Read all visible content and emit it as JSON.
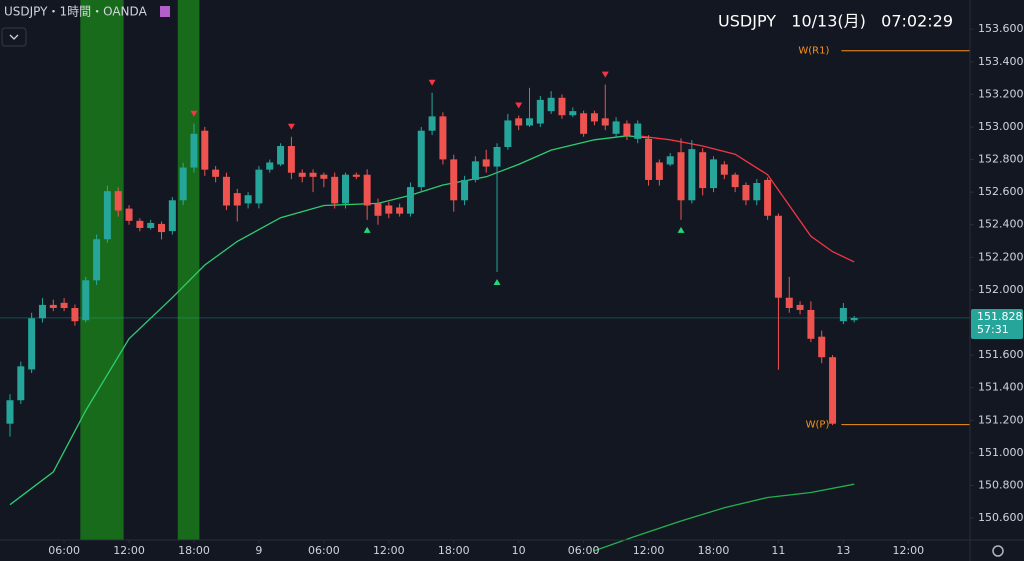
{
  "chart_data": {
    "type": "candlestick",
    "title": "USDJPY・1時間・OANDA",
    "header": "USDJPY   10/13(月)   07:02:29",
    "colors": {
      "up": "#26a69a",
      "down": "#ef5350",
      "background": "#131722",
      "highlight": "#1b7a1b"
    },
    "open": [
      151.179,
      151.323,
      151.512,
      151.826,
      151.908,
      151.921,
      151.889,
      151.814,
      152.059,
      152.311,
      152.606,
      152.499,
      152.424,
      152.38,
      152.405,
      152.361,
      152.55,
      152.751,
      152.977,
      152.738,
      152.694,
      152.594,
      152.531,
      152.531,
      152.738,
      152.77,
      152.883,
      152.719,
      152.719,
      152.707,
      152.694,
      152.531,
      152.707,
      152.707,
      152.531,
      152.518,
      152.506,
      152.468,
      152.631,
      152.977,
      153.065,
      152.801,
      152.55,
      152.675,
      152.801,
      152.757,
      152.877,
      153.053,
      153.009,
      153.021,
      153.097,
      153.179,
      153.072,
      153.084,
      153.084,
      153.053,
      152.958,
      153.021,
      152.927,
      152.927,
      152.782,
      152.77,
      152.845,
      152.55,
      152.845,
      152.625,
      152.77,
      152.707,
      152.644,
      152.55,
      152.675,
      152.455,
      151.952,
      151.908,
      151.877,
      151.713,
      151.587,
      151.808,
      151.814
    ],
    "high": [
      151.36,
      151.56,
      151.86,
      151.95,
      151.94,
      151.95,
      151.91,
      152.08,
      152.34,
      152.64,
      152.63,
      152.52,
      152.44,
      152.43,
      152.42,
      152.57,
      152.78,
      153.02,
      153.0,
      152.76,
      152.72,
      152.62,
      152.6,
      152.76,
      152.8,
      152.9,
      152.94,
      152.74,
      152.74,
      152.72,
      152.72,
      152.72,
      152.72,
      152.74,
      152.56,
      152.54,
      152.53,
      152.66,
      153.0,
      153.21,
      153.09,
      152.83,
      152.7,
      152.82,
      152.86,
      152.9,
      153.08,
      153.07,
      153.24,
      153.19,
      153.22,
      153.2,
      153.12,
      153.1,
      153.1,
      153.26,
      153.06,
      153.04,
      153.04,
      152.95,
      152.8,
      152.84,
      152.93,
      152.92,
      152.87,
      152.82,
      152.79,
      152.72,
      152.66,
      152.68,
      152.69,
      152.47,
      152.08,
      151.93,
      151.93,
      151.75,
      151.6,
      151.92,
      151.84
    ],
    "low": [
      151.1,
      151.3,
      151.49,
      151.8,
      151.87,
      151.87,
      151.78,
      151.8,
      152.03,
      152.29,
      152.45,
      152.4,
      152.36,
      152.37,
      152.31,
      152.34,
      152.52,
      152.72,
      152.7,
      152.66,
      152.49,
      152.42,
      152.5,
      152.5,
      152.72,
      152.76,
      152.68,
      152.66,
      152.6,
      152.63,
      152.5,
      152.5,
      152.68,
      152.43,
      152.4,
      152.44,
      152.45,
      152.45,
      152.6,
      152.95,
      152.77,
      152.48,
      152.52,
      152.66,
      152.72,
      152.11,
      152.86,
      152.98,
      153.0,
      153.0,
      153.08,
      153.05,
      153.06,
      152.94,
      153.01,
      152.98,
      152.94,
      152.92,
      152.9,
      152.64,
      152.64,
      152.76,
      152.43,
      152.53,
      152.58,
      152.6,
      152.68,
      152.6,
      152.52,
      152.52,
      152.43,
      151.51,
      151.86,
      151.85,
      151.68,
      151.55,
      151.17,
      151.79,
      151.8
    ],
    "close": [
      151.323,
      151.531,
      151.826,
      151.908,
      151.889,
      151.889,
      151.808,
      152.059,
      152.311,
      152.606,
      152.487,
      152.424,
      152.38,
      152.411,
      152.355,
      152.55,
      152.751,
      152.958,
      152.738,
      152.694,
      152.518,
      152.518,
      152.581,
      152.738,
      152.782,
      152.883,
      152.719,
      152.694,
      152.694,
      152.682,
      152.531,
      152.707,
      152.694,
      152.518,
      152.455,
      152.468,
      152.468,
      152.631,
      152.977,
      153.065,
      152.801,
      152.55,
      152.675,
      152.789,
      152.757,
      152.877,
      153.04,
      153.009,
      153.053,
      153.166,
      153.179,
      153.072,
      153.097,
      152.958,
      153.034,
      153.009,
      153.034,
      152.946,
      153.021,
      152.675,
      152.675,
      152.82,
      152.55,
      152.864,
      152.625,
      152.801,
      152.707,
      152.631,
      152.55,
      152.656,
      152.455,
      151.952,
      151.889,
      151.877,
      151.7,
      151.587,
      151.179,
      151.889,
      151.828
    ],
    "series": [
      {
        "color": "#2ecc71",
        "x": [
          0,
          4,
          7,
          11,
          15,
          18,
          21,
          25,
          29,
          34,
          37,
          40,
          44,
          47,
          50,
          54,
          57,
          59
        ],
        "values": [
          150.682,
          150.883,
          151.26,
          151.7,
          151.952,
          152.153,
          152.298,
          152.443,
          152.518,
          152.531,
          152.581,
          152.644,
          152.694,
          152.77,
          152.858,
          152.921,
          152.946,
          152.933
        ]
      },
      {
        "color": "#f23645",
        "x": [
          58,
          61,
          64,
          67,
          70,
          72,
          74,
          76,
          78
        ],
        "values": [
          152.946,
          152.921,
          152.883,
          152.833,
          152.707,
          152.518,
          152.329,
          152.235,
          152.172
        ]
      },
      {
        "color": "#22b14c",
        "x": [
          54,
          58,
          62,
          66,
          70,
          74,
          78
        ],
        "values": [
          150.399,
          150.493,
          150.582,
          150.663,
          150.726,
          150.757,
          150.808
        ]
      }
    ],
    "highlight_ranges": [
      [
        7,
        10
      ],
      [
        16,
        17
      ]
    ],
    "markers_down": [
      17,
      26,
      39,
      47,
      55
    ],
    "markers_up": [
      33,
      45,
      62
    ],
    "levels": [
      {
        "value": 153.468,
        "label": "W(R1)",
        "color": "#f7931a"
      },
      {
        "value": 151.173,
        "label": "W(P)",
        "color": "#f7931a"
      }
    ],
    "last_price": 151.828,
    "countdown": "57:31",
    "ylim": [
      150.4653,
      153.7791
    ],
    "yticks": [
      {
        "value": 153.6,
        "label": "153.600"
      },
      {
        "value": 153.4,
        "label": "153.400"
      },
      {
        "value": 153.2,
        "label": "153.200"
      },
      {
        "value": 153.0,
        "label": "153.000"
      },
      {
        "value": 152.8,
        "label": "152.800"
      },
      {
        "value": 152.6,
        "label": "152.600"
      },
      {
        "value": 152.4,
        "label": "152.400"
      },
      {
        "value": 152.2,
        "label": "152.200"
      },
      {
        "value": 152.0,
        "label": "152.000"
      },
      {
        "value": 151.8,
        "label": "151.800"
      },
      {
        "value": 151.6,
        "label": "151.600"
      },
      {
        "value": 151.4,
        "label": "151.400"
      },
      {
        "value": 151.2,
        "label": "151.200"
      },
      {
        "value": 151.0,
        "label": "151.000"
      },
      {
        "value": 150.8,
        "label": "150.800"
      },
      {
        "value": 150.6,
        "label": "150.600"
      }
    ],
    "xlim": [
      -0.923,
      88.7
    ],
    "xticks": [
      {
        "value": 5,
        "label": "06:00"
      },
      {
        "value": 11,
        "label": "12:00"
      },
      {
        "value": 17,
        "label": "18:00"
      },
      {
        "value": 23,
        "label": "9"
      },
      {
        "value": 29,
        "label": "06:00"
      },
      {
        "value": 35,
        "label": "12:00"
      },
      {
        "value": 41,
        "label": "18:00"
      },
      {
        "value": 47,
        "label": "10"
      },
      {
        "value": 53,
        "label": "06:00"
      },
      {
        "value": 59,
        "label": "12:00"
      },
      {
        "value": 65,
        "label": "18:00"
      },
      {
        "value": 71,
        "label": "11"
      },
      {
        "value": 77,
        "label": "13"
      },
      {
        "value": 83,
        "label": "12:00"
      }
    ]
  }
}
